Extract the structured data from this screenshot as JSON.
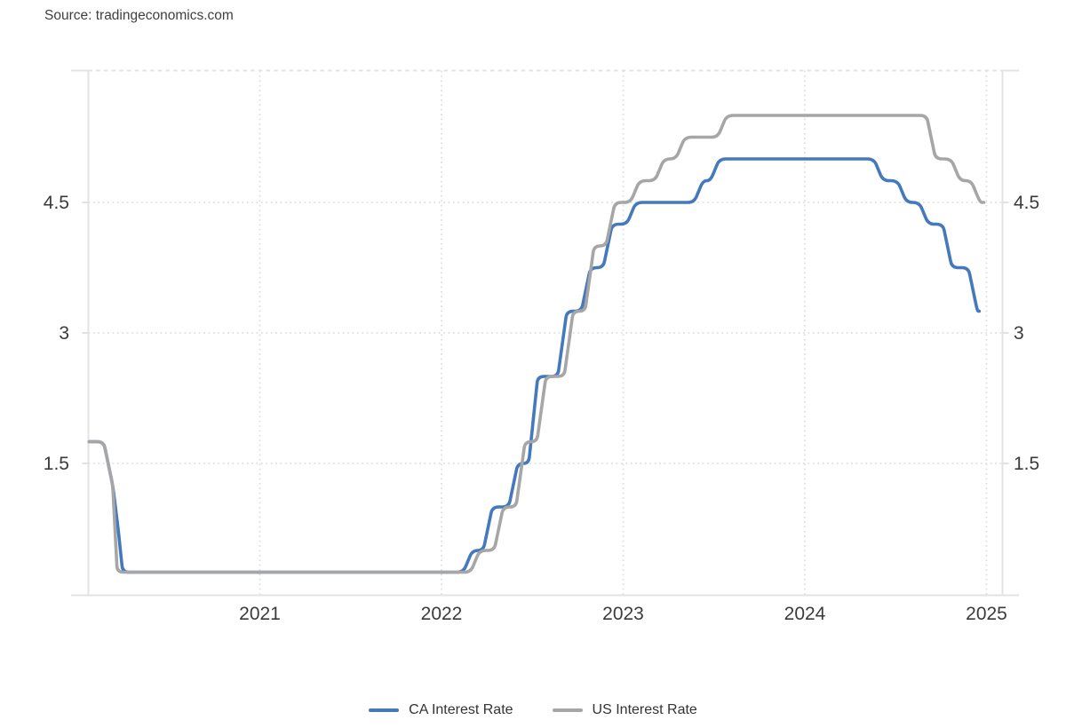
{
  "source": {
    "label": "Source: tradingeconomics.com"
  },
  "chart_data": {
    "type": "line",
    "title": "",
    "xlabel": "",
    "ylabel": "",
    "x_axis": {
      "ticks": [
        2021,
        2022,
        2023,
        2024,
        2025
      ],
      "tick_labels": [
        "2021",
        "2022",
        "2023",
        "2024",
        "2025"
      ],
      "range": [
        2020.06,
        2025.09
      ],
      "gridlines": "dotted"
    },
    "y_axis": {
      "ticks": [
        1.5,
        3,
        4.5
      ],
      "tick_labels": [
        "1.5",
        "3",
        "4.5"
      ],
      "range": [
        0,
        6.0
      ],
      "sides": "both",
      "gridlines": "dotted"
    },
    "legend_position": "bottom",
    "series": [
      {
        "name": "CA Interest Rate",
        "color": "#4579bd",
        "start": [
          2020.06,
          1.75
        ],
        "end_x": 2024.96,
        "changes": [
          [
            2020.19,
            1.25
          ],
          [
            2020.22,
            0.75
          ],
          [
            2020.245,
            0.25
          ],
          [
            2022.17,
            0.5
          ],
          [
            2022.28,
            1.0
          ],
          [
            2022.42,
            1.5
          ],
          [
            2022.53,
            2.5
          ],
          [
            2022.69,
            3.25
          ],
          [
            2022.82,
            3.75
          ],
          [
            2022.94,
            4.25
          ],
          [
            2023.07,
            4.5
          ],
          [
            2023.44,
            4.75
          ],
          [
            2023.53,
            5.0
          ],
          [
            2024.43,
            4.75
          ],
          [
            2024.56,
            4.5
          ],
          [
            2024.68,
            4.25
          ],
          [
            2024.81,
            3.75
          ],
          [
            2024.95,
            3.25
          ]
        ]
      },
      {
        "name": "US Interest Rate",
        "color": "#a6a6a6",
        "start": [
          2020.06,
          1.75
        ],
        "end_x": 2024.985,
        "changes": [
          [
            2020.19,
            1.25
          ],
          [
            2020.215,
            0.25
          ],
          [
            2022.21,
            0.5
          ],
          [
            2022.34,
            1.0
          ],
          [
            2022.46,
            1.75
          ],
          [
            2022.575,
            2.5
          ],
          [
            2022.725,
            3.25
          ],
          [
            2022.84,
            4.0
          ],
          [
            2022.955,
            4.5
          ],
          [
            2023.09,
            4.75
          ],
          [
            2023.225,
            5.0
          ],
          [
            2023.34,
            5.25
          ],
          [
            2023.57,
            5.5
          ],
          [
            2024.72,
            5.0
          ],
          [
            2024.855,
            4.75
          ],
          [
            2024.965,
            4.5
          ]
        ]
      }
    ],
    "style_colors": {
      "grid_dotted": "#e0e0e0",
      "border": "#e3e3e3",
      "tick": "#d8d8d8",
      "axis_text": "#3b3b3b"
    }
  }
}
